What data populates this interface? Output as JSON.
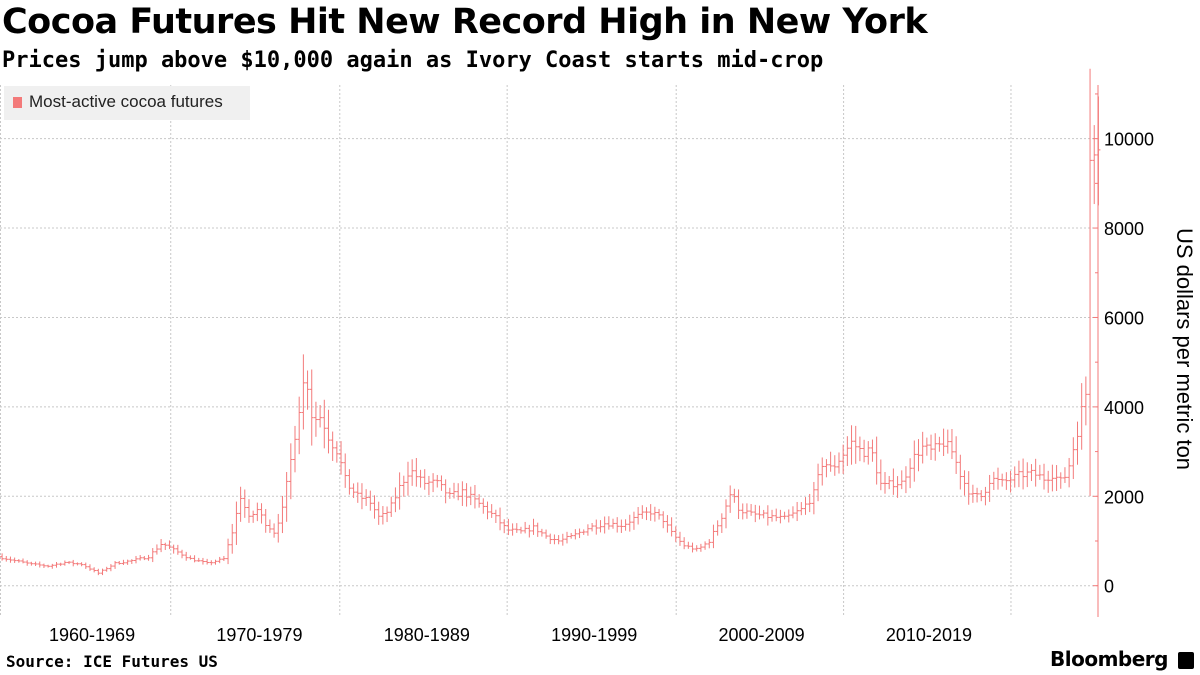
{
  "header": {
    "title": "Cocoa Futures Hit New Record High in New York",
    "subtitle": "Prices jump above $10,000 again as Ivory Coast starts mid-crop"
  },
  "footer": {
    "source": "Source: ICE Futures US",
    "brand": "Bloomberg"
  },
  "colors": {
    "series": "#f37a7a",
    "grid": "#c8c8c8",
    "legend_bg": "#f0f0f0"
  },
  "chart_data": {
    "type": "ohlc",
    "ylabel": "US dollars per metric ton",
    "ylim": [
      -700,
      11200
    ],
    "yticks": [
      0,
      2000,
      4000,
      6000,
      8000,
      10000
    ],
    "xlim": [
      1959.0,
      2024.6
    ],
    "xtick_labels": [
      {
        "label": "1960-1969",
        "x": 1964.5
      },
      {
        "label": "1970-1979",
        "x": 1974.5
      },
      {
        "label": "1980-1989",
        "x": 1984.5
      },
      {
        "label": "1990-1999",
        "x": 1994.5
      },
      {
        "label": "2000-2009",
        "x": 2004.5
      },
      {
        "label": "2010-2019",
        "x": 2014.5
      }
    ],
    "x_gridlines": [
      1969.2,
      1979.3,
      1989.3,
      1999.4,
      2009.4,
      2019.4
    ],
    "grid": true,
    "legend": {
      "position": "top-left",
      "entries": [
        "Most-active cocoa futures"
      ]
    },
    "series": [
      {
        "name": "Most-active cocoa futures",
        "anchors": [
          [
            1959.0,
            650
          ],
          [
            1960.0,
            560
          ],
          [
            1961.0,
            480
          ],
          [
            1962.0,
            440
          ],
          [
            1963.0,
            520
          ],
          [
            1964.0,
            480
          ],
          [
            1965.0,
            280
          ],
          [
            1966.0,
            500
          ],
          [
            1967.0,
            560
          ],
          [
            1968.0,
            650
          ],
          [
            1968.8,
            950
          ],
          [
            1969.5,
            800
          ],
          [
            1970.5,
            600
          ],
          [
            1971.5,
            500
          ],
          [
            1972.5,
            600
          ],
          [
            1973.0,
            1200
          ],
          [
            1973.5,
            2000
          ],
          [
            1974.0,
            1500
          ],
          [
            1974.5,
            1700
          ],
          [
            1975.0,
            1400
          ],
          [
            1975.5,
            1200
          ],
          [
            1976.0,
            1700
          ],
          [
            1976.5,
            2800
          ],
          [
            1977.0,
            4000
          ],
          [
            1977.4,
            4800
          ],
          [
            1977.8,
            3700
          ],
          [
            1978.3,
            3800
          ],
          [
            1978.8,
            3300
          ],
          [
            1979.3,
            3000
          ],
          [
            1979.8,
            2300
          ],
          [
            1980.5,
            2000
          ],
          [
            1981.2,
            1900
          ],
          [
            1981.8,
            1500
          ],
          [
            1982.4,
            1700
          ],
          [
            1983.0,
            2200
          ],
          [
            1983.6,
            2600
          ],
          [
            1984.4,
            2300
          ],
          [
            1985.2,
            2300
          ],
          [
            1986.0,
            2000
          ],
          [
            1986.8,
            2100
          ],
          [
            1987.5,
            1900
          ],
          [
            1988.2,
            1700
          ],
          [
            1988.8,
            1500
          ],
          [
            1989.4,
            1250
          ],
          [
            1990.2,
            1200
          ],
          [
            1991.0,
            1300
          ],
          [
            1991.8,
            1100
          ],
          [
            1992.5,
            1000
          ],
          [
            1993.3,
            1100
          ],
          [
            1994.3,
            1300
          ],
          [
            1995.3,
            1400
          ],
          [
            1996.3,
            1350
          ],
          [
            1997.2,
            1550
          ],
          [
            1998.0,
            1650
          ],
          [
            1998.7,
            1500
          ],
          [
            1999.3,
            1150
          ],
          [
            2000.0,
            900
          ],
          [
            2000.8,
            800
          ],
          [
            2001.5,
            1000
          ],
          [
            2002.2,
            1500
          ],
          [
            2002.8,
            2100
          ],
          [
            2003.3,
            1700
          ],
          [
            2004.0,
            1600
          ],
          [
            2005.0,
            1550
          ],
          [
            2006.0,
            1500
          ],
          [
            2007.0,
            1700
          ],
          [
            2007.7,
            2000
          ],
          [
            2008.3,
            2800
          ],
          [
            2008.8,
            2600
          ],
          [
            2009.4,
            2900
          ],
          [
            2010.0,
            3200
          ],
          [
            2010.6,
            3000
          ],
          [
            2011.2,
            3000
          ],
          [
            2011.8,
            2200
          ],
          [
            2012.5,
            2300
          ],
          [
            2013.0,
            2300
          ],
          [
            2013.6,
            2800
          ],
          [
            2014.2,
            3100
          ],
          [
            2014.8,
            3000
          ],
          [
            2015.5,
            3200
          ],
          [
            2016.0,
            3000
          ],
          [
            2016.6,
            2400
          ],
          [
            2017.2,
            2000
          ],
          [
            2017.8,
            2000
          ],
          [
            2018.3,
            2400
          ],
          [
            2019.0,
            2300
          ],
          [
            2019.6,
            2400
          ],
          [
            2020.3,
            2500
          ],
          [
            2020.9,
            2500
          ],
          [
            2021.5,
            2400
          ],
          [
            2022.0,
            2500
          ],
          [
            2022.6,
            2300
          ],
          [
            2023.0,
            2700
          ],
          [
            2023.4,
            3300
          ],
          [
            2023.8,
            4000
          ],
          [
            2024.0,
            4300
          ],
          [
            2024.1,
            10000
          ],
          [
            2024.25,
            9800
          ],
          [
            2024.35,
            10000
          ]
        ]
      }
    ]
  }
}
